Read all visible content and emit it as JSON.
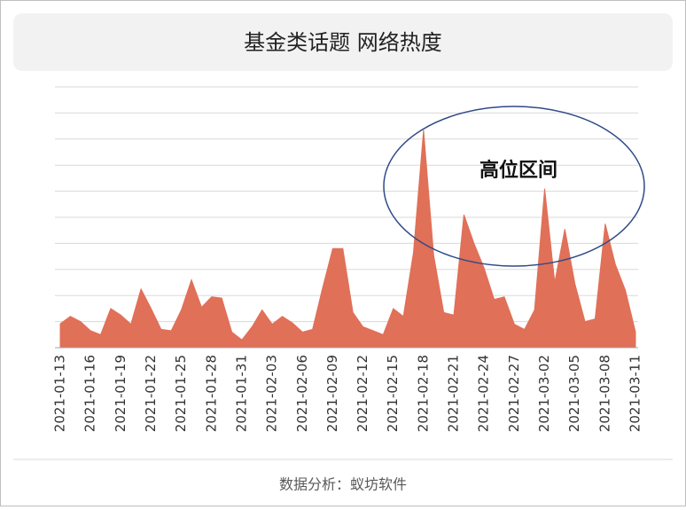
{
  "chart_data": {
    "type": "area",
    "title": "基金类话题 网络热度",
    "categories": [
      "2021-01-13",
      null,
      null,
      "2021-01-16",
      null,
      null,
      "2021-01-19",
      null,
      null,
      "2021-01-22",
      null,
      null,
      "2021-01-25",
      null,
      null,
      "2021-01-28",
      null,
      null,
      "2021-01-31",
      null,
      null,
      "2021-02-03",
      null,
      null,
      "2021-02-06",
      null,
      null,
      "2021-02-09",
      null,
      null,
      "2021-02-12",
      null,
      null,
      "2021-02-15",
      null,
      null,
      "2021-02-18",
      null,
      null,
      "2021-02-21",
      null,
      null,
      "2021-02-24",
      null,
      null,
      "2021-02-27",
      null,
      null,
      "2021-03-02",
      null,
      null,
      "2021-03-05",
      null,
      null,
      "2021-03-08",
      null,
      null,
      "2021-03-11"
    ],
    "values": [
      0.92,
      1.2,
      1.0,
      0.65,
      0.5,
      1.5,
      1.25,
      0.9,
      2.25,
      1.5,
      0.7,
      0.65,
      1.45,
      2.6,
      1.55,
      1.95,
      1.9,
      0.6,
      0.3,
      0.8,
      1.45,
      0.9,
      1.2,
      0.95,
      0.6,
      0.7,
      2.3,
      3.8,
      3.8,
      1.35,
      0.8,
      0.65,
      0.5,
      1.5,
      1.2,
      3.65,
      8.35,
      3.55,
      1.35,
      1.25,
      5.1,
      4.0,
      3.05,
      1.85,
      1.95,
      0.9,
      0.7,
      1.45,
      6.1,
      2.5,
      4.55,
      2.45,
      1.0,
      1.1,
      4.75,
      3.2,
      2.2,
      0.6
    ],
    "color": "#e07058",
    "ylim": [
      0,
      10
    ],
    "yticks": [
      0,
      1,
      2,
      3,
      4,
      5,
      6,
      7,
      8,
      9,
      10
    ],
    "grid": true,
    "annotation": "高位区间",
    "source": "数据分析：蚁坊软件"
  }
}
